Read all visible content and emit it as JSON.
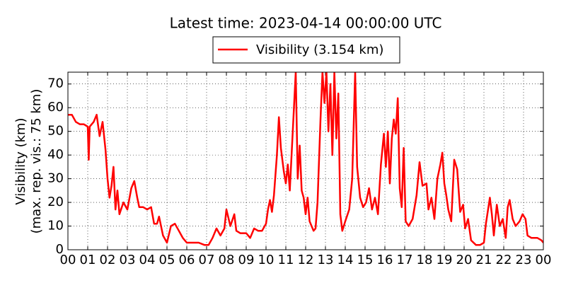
{
  "chart_data": {
    "type": "line",
    "title": "Latest time: 2023-04-14 00:00:00 UTC",
    "ylabel": [
      "Visibility (km)",
      "(max. rep. vis.: 75 km)"
    ],
    "series": [
      {
        "name": "Visibility (3.154 km)",
        "color": "#ff0000",
        "x": [
          0.0,
          0.2,
          0.4,
          0.6,
          0.8,
          1.0,
          1.05,
          1.1,
          1.3,
          1.45,
          1.6,
          1.75,
          1.9,
          2.0,
          2.1,
          2.2,
          2.3,
          2.4,
          2.5,
          2.6,
          2.8,
          3.0,
          3.2,
          3.35,
          3.5,
          3.6,
          3.8,
          4.0,
          4.2,
          4.35,
          4.5,
          4.6,
          4.8,
          5.0,
          5.2,
          5.4,
          5.6,
          5.8,
          6.0,
          6.3,
          6.6,
          6.9,
          7.1,
          7.3,
          7.5,
          7.7,
          7.9,
          8.0,
          8.2,
          8.4,
          8.5,
          8.7,
          9.0,
          9.2,
          9.4,
          9.6,
          9.8,
          10.0,
          10.1,
          10.2,
          10.3,
          10.4,
          10.55,
          10.65,
          10.75,
          10.9,
          11.0,
          11.1,
          11.2,
          11.35,
          11.5,
          11.6,
          11.7,
          11.8,
          11.9,
          12.0,
          12.1,
          12.2,
          12.4,
          12.5,
          12.6,
          12.75,
          12.85,
          12.95,
          13.05,
          13.15,
          13.25,
          13.35,
          13.45,
          13.55,
          13.65,
          13.75,
          13.85,
          14.0,
          14.2,
          14.35,
          14.5,
          14.6,
          14.75,
          14.9,
          15.05,
          15.2,
          15.35,
          15.5,
          15.65,
          15.8,
          15.95,
          16.05,
          16.15,
          16.25,
          16.35,
          16.45,
          16.55,
          16.65,
          16.75,
          16.85,
          16.95,
          17.05,
          17.2,
          17.4,
          17.6,
          17.75,
          17.9,
          18.1,
          18.2,
          18.35,
          18.5,
          18.65,
          18.8,
          18.9,
          19.0,
          19.1,
          19.2,
          19.35,
          19.5,
          19.65,
          19.8,
          19.95,
          20.05,
          20.2,
          20.35,
          20.6,
          20.8,
          21.0,
          21.1,
          21.3,
          21.4,
          21.5,
          21.65,
          21.8,
          21.95,
          22.1,
          22.2,
          22.3,
          22.45,
          22.6,
          22.8,
          22.95,
          23.1,
          23.2,
          23.4,
          23.7,
          23.9,
          24.0
        ],
        "values": [
          57,
          57,
          54,
          53,
          53,
          52,
          38,
          52,
          54,
          57,
          48,
          54,
          42,
          30,
          22,
          27,
          35,
          17,
          25,
          15,
          20,
          17,
          26,
          29,
          22,
          18,
          18,
          17,
          18,
          11,
          11,
          14,
          6,
          3,
          10,
          11,
          8,
          5,
          3,
          3,
          3,
          2,
          2,
          5,
          9,
          6,
          9,
          17,
          10,
          15,
          8,
          7,
          7,
          5,
          9,
          8,
          8,
          11,
          17,
          21,
          16,
          23,
          40,
          56,
          43,
          33,
          28,
          36,
          25,
          50,
          75,
          30,
          44,
          25,
          22,
          15,
          22,
          12,
          8,
          9,
          20,
          55,
          75,
          62,
          75,
          50,
          70,
          40,
          75,
          47,
          66,
          15,
          8,
          12,
          17,
          30,
          75,
          35,
          22,
          18,
          20,
          26,
          17,
          22,
          15,
          36,
          49,
          35,
          50,
          28,
          47,
          55,
          49,
          64,
          26,
          18,
          43,
          12,
          10,
          13,
          23,
          37,
          27,
          28,
          17,
          22,
          13,
          30,
          36,
          41,
          28,
          23,
          17,
          12,
          38,
          34,
          16,
          19,
          9,
          13,
          4,
          2,
          2,
          3,
          11,
          22,
          15,
          6,
          19,
          10,
          13,
          5,
          18,
          21,
          13,
          10,
          12,
          15,
          13,
          6,
          5,
          5,
          4,
          3
        ]
      }
    ],
    "xlim": [
      0,
      24
    ],
    "xticks": [
      {
        "value": 0,
        "label": "00"
      },
      {
        "value": 1,
        "label": "01"
      },
      {
        "value": 2,
        "label": "02"
      },
      {
        "value": 3,
        "label": "03"
      },
      {
        "value": 4,
        "label": "04"
      },
      {
        "value": 5,
        "label": "05"
      },
      {
        "value": 6,
        "label": "06"
      },
      {
        "value": 7,
        "label": "07"
      },
      {
        "value": 8,
        "label": "08"
      },
      {
        "value": 9,
        "label": "09"
      },
      {
        "value": 10,
        "label": "10"
      },
      {
        "value": 11,
        "label": "11"
      },
      {
        "value": 12,
        "label": "12"
      },
      {
        "value": 13,
        "label": "13"
      },
      {
        "value": 14,
        "label": "14"
      },
      {
        "value": 15,
        "label": "15"
      },
      {
        "value": 16,
        "label": "16"
      },
      {
        "value": 17,
        "label": "17"
      },
      {
        "value": 18,
        "label": "18"
      },
      {
        "value": 19,
        "label": "19"
      },
      {
        "value": 20,
        "label": "20"
      },
      {
        "value": 21,
        "label": "21"
      },
      {
        "value": 22,
        "label": "22"
      },
      {
        "value": 23,
        "label": "23"
      },
      {
        "value": 24,
        "label": "00"
      }
    ],
    "ylim": [
      0,
      75
    ],
    "yticks": [
      0,
      10,
      20,
      30,
      40,
      50,
      60,
      70
    ],
    "grid": true,
    "legend": "top"
  }
}
